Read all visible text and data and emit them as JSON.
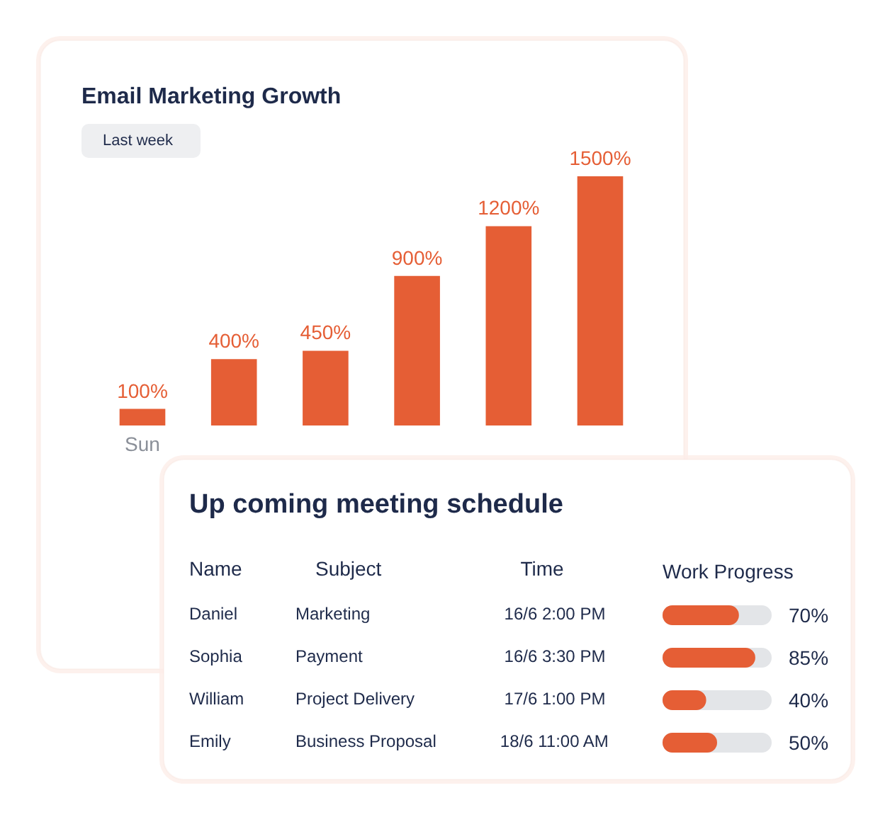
{
  "chart_data": [
    {
      "type": "bar",
      "title": "Email Marketing Growth",
      "subtitle": "Last week",
      "categories": [
        "Sun",
        null,
        null,
        null,
        null,
        null
      ],
      "values": [
        100,
        400,
        450,
        900,
        1200,
        1500
      ],
      "value_labels": [
        "100%",
        "400%",
        "450%",
        "900%",
        "1200%",
        "1500%"
      ],
      "color": "#e55e35",
      "tick_labels": "x"
    },
    {
      "type": "other",
      "title": "Up coming meeting schedule",
      "categories": [
        "Name",
        "Subject",
        "Time"
      ],
      "annotations": [
        "Daniel",
        "Marketing",
        "16/6 2:00 PM",
        "Sophia",
        "Payment",
        "16/6 3:30 PM",
        "William",
        "Project Delivery",
        "17/6 1:00 PM",
        "Emily",
        "Business Proposal",
        "18/6 11:00 AM"
      ]
    },
    {
      "type": "bar",
      "orientation": "horizontal",
      "title": "Work Progress",
      "categories": [
        null,
        null,
        null,
        null
      ],
      "values": [
        70,
        85,
        40,
        50
      ],
      "value_labels": [
        "70%",
        "85%",
        "40%",
        "50%"
      ],
      "color": "#e55e35",
      "xlim": [
        0,
        100
      ],
      "tick_labels": false
    }
  ]
}
